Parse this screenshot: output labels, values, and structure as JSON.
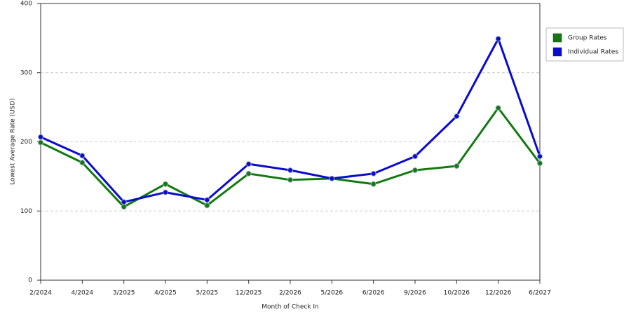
{
  "chart_data": {
    "type": "line",
    "x_label": "Month of Check In",
    "y_label": "Lowest Average Rate (USD)",
    "categories": [
      "2/2024",
      "4/2024",
      "3/2025",
      "4/2025",
      "5/2025",
      "12/2025",
      "2/2026",
      "5/2026",
      "6/2026",
      "9/2026",
      "10/2026",
      "12/2026",
      "6/2027"
    ],
    "series": [
      {
        "name": "Group Rates",
        "color": "#107a10",
        "values": [
          199,
          170,
          106,
          139,
          108,
          154,
          145,
          147,
          139,
          159,
          165,
          249,
          169
        ]
      },
      {
        "name": "Individual Rates",
        "color": "#0a0ad0",
        "values": [
          207,
          180,
          113,
          127,
          116,
          168,
          159,
          147,
          154,
          179,
          237,
          349,
          179
        ]
      }
    ],
    "ylim": [
      0,
      400
    ],
    "yticks": [
      0,
      100,
      200,
      300,
      400
    ],
    "grid": true,
    "legend": "right"
  }
}
